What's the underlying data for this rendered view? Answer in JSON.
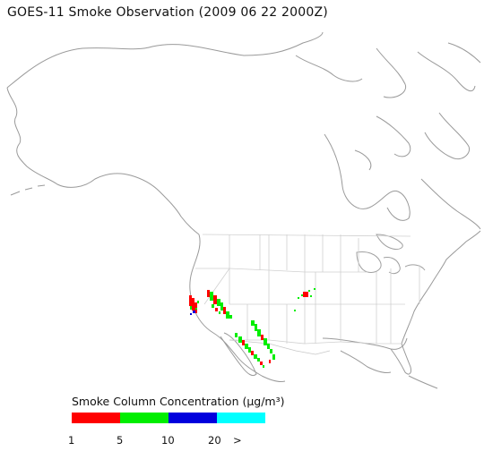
{
  "title": "GOES-11 Smoke Observation (2009 06 22  2000Z)",
  "legend": {
    "title": "Smoke Column Concentration (μg/m³)",
    "bins": [
      {
        "color": "#ff0000"
      },
      {
        "color": "#00ee00"
      },
      {
        "color": "#0000dd"
      },
      {
        "color": "#00ffff"
      }
    ],
    "ticks": [
      "1",
      "5",
      "10",
      "20",
      ">"
    ]
  },
  "map_features": {
    "coastline_color": "#9a9a9a",
    "state_border_color": "#d0d0d0"
  }
}
